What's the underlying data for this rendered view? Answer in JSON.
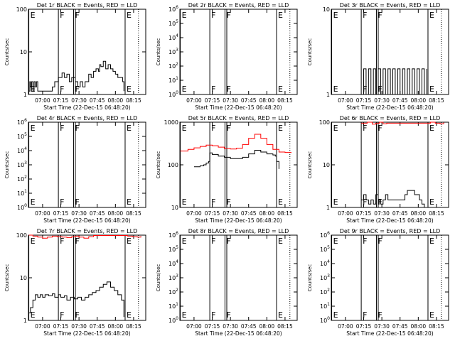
{
  "image": {
    "width": 640,
    "height": 480
  },
  "common": {
    "ylabel": "Counts/sec",
    "xlabel": "Start Time (22-Dec-15 06:48:20)",
    "x_start_time": "06:48:20",
    "x_end_time": "08:25:00",
    "x_ticks": [
      "07:00",
      "07:15",
      "07:30",
      "07:45",
      "08:00",
      "08:15"
    ],
    "event_line_color": "#000000",
    "lld_line_color": "#ff0000",
    "markers": [
      {
        "label": "E",
        "time": "06:48:40"
      },
      {
        "label": "F",
        "time": "07:13:00"
      },
      {
        "label": "F",
        "time": "07:25:30"
      },
      {
        "label": "E",
        "time": "08:08:00"
      }
    ],
    "band_time": "07:27:00"
  },
  "chart_data": [
    {
      "title": "Det 1r BLACK = Events, RED = LLD",
      "type": "line",
      "ylim": [
        1,
        100
      ],
      "y_ticks": [
        "1",
        "10",
        "100"
      ],
      "series": [
        {
          "name": "Events",
          "color": "#000000",
          "x": [
            "06:48:40",
            "06:49:30",
            "06:50:00",
            "06:51:00",
            "06:52:00",
            "06:53:00",
            "06:54:00",
            "06:55:00",
            "06:56:00",
            "07:00:00",
            "07:05:00",
            "07:08:00",
            "07:10:00",
            "07:13:00",
            "07:14:00",
            "07:16:00",
            "07:18:00",
            "07:20:00",
            "07:22:00",
            "07:24:00",
            "07:27:00",
            "07:29:00",
            "07:31:00",
            "07:33:00",
            "07:35:00",
            "07:38:00",
            "07:40:00",
            "07:42:00",
            "07:44:00",
            "07:46:00",
            "07:47:00",
            "07:48:00",
            "07:50:00",
            "07:52:00",
            "07:54:00",
            "07:56:00",
            "07:58:00",
            "08:00:00",
            "08:02:00",
            "08:04:00",
            "08:06:00",
            "08:07:00"
          ],
          "y": [
            1.2,
            2,
            1.5,
            2,
            1.2,
            2,
            1.5,
            2,
            1.2,
            1.2,
            1.2,
            1.5,
            2,
            2.5,
            2.5,
            3.2,
            2.5,
            3,
            2,
            2.5,
            2,
            1.5,
            2,
            1.5,
            2,
            3,
            2.5,
            3.5,
            4,
            3.5,
            5,
            4.5,
            6,
            4,
            5,
            4,
            3.5,
            3,
            2.5,
            2.5,
            2,
            1.2
          ]
        }
      ]
    },
    {
      "title": "Det 2r BLACK = Events, RED = LLD",
      "type": "line",
      "ylim": [
        1,
        1000000
      ],
      "y_ticks": [
        "10^0",
        "10^1",
        "10^2",
        "10^3",
        "10^4",
        "10^5",
        "10^6"
      ],
      "series": []
    },
    {
      "title": "Det 3r BLACK = Events, RED = LLD",
      "type": "line",
      "ylim": [
        1,
        10
      ],
      "y_ticks": [
        "1",
        "10"
      ],
      "series": [
        {
          "name": "Events",
          "color": "#000000",
          "x": [
            "07:13:00",
            "07:15:00",
            "07:17:00",
            "07:19:00",
            "07:21:00",
            "07:23:00",
            "07:25:00",
            "07:27:00",
            "07:29:00",
            "07:31:00",
            "07:33:00",
            "07:35:00",
            "07:37:00",
            "07:39:00",
            "07:41:00",
            "07:43:00",
            "07:45:00",
            "07:47:00",
            "07:49:00",
            "07:51:00",
            "07:53:00",
            "07:55:00",
            "07:57:00",
            "07:59:00",
            "08:01:00",
            "08:03:00",
            "08:05:00",
            "08:07:00"
          ],
          "y": [
            1,
            2,
            1,
            2,
            1,
            2,
            1,
            2,
            1,
            2,
            1,
            2,
            1,
            2,
            1,
            2,
            1,
            2,
            1,
            2,
            1,
            2,
            1,
            2,
            1,
            2,
            1,
            2
          ]
        }
      ]
    },
    {
      "title": "Det 4r BLACK = Events, RED = LLD",
      "type": "line",
      "ylim": [
        1,
        1000000
      ],
      "y_ticks": [
        "10^0",
        "10^1",
        "10^2",
        "10^3",
        "10^4",
        "10^5",
        "10^6"
      ],
      "series": []
    },
    {
      "title": "Det 5r BLACK = Events, RED = LLD",
      "type": "line",
      "ylim": [
        10,
        1000
      ],
      "y_ticks": [
        "10",
        "100",
        "1000"
      ],
      "series": [
        {
          "name": "LLD",
          "color": "#ff0000",
          "x": [
            "06:48:40",
            "06:55:00",
            "07:00:00",
            "07:05:00",
            "07:10:00",
            "07:15:00",
            "07:20:00",
            "07:25:00",
            "07:30:00",
            "07:35:00",
            "07:40:00",
            "07:45:00",
            "07:50:00",
            "07:55:00",
            "08:00:00",
            "08:05:00",
            "08:10:00",
            "08:15:00",
            "08:20:00"
          ],
          "y": [
            210,
            230,
            250,
            270,
            290,
            280,
            260,
            240,
            235,
            245,
            300,
            420,
            520,
            420,
            300,
            230,
            200,
            195,
            190
          ]
        },
        {
          "name": "Events",
          "color": "#000000",
          "x": [
            "07:00:00",
            "07:05:00",
            "07:08:00",
            "07:10:00",
            "07:12:00",
            "07:13:00",
            "07:15:00",
            "07:20:00",
            "07:25:00",
            "07:30:00",
            "07:35:00",
            "07:40:00",
            "07:45:00",
            "07:50:00",
            "07:55:00",
            "08:00:00",
            "08:05:00",
            "08:07:00",
            "08:08:00",
            "08:10:00"
          ],
          "y": [
            90,
            95,
            100,
            110,
            120,
            190,
            175,
            160,
            150,
            140,
            140,
            150,
            180,
            220,
            200,
            180,
            170,
            160,
            120,
            80
          ]
        }
      ]
    },
    {
      "title": "Det 6r BLACK = Events, RED = LLD",
      "type": "line",
      "ylim": [
        1,
        100
      ],
      "y_ticks": [
        "1",
        "10",
        "100"
      ],
      "series": [
        {
          "name": "LLD",
          "color": "#ff0000",
          "x": [
            "07:13:00",
            "07:18:00",
            "07:22:00",
            "07:25:00",
            "07:28:00",
            "07:31:00",
            "07:34:00",
            "08:10:00",
            "08:14:00",
            "08:18:00",
            "08:21:00"
          ],
          "y": [
            95,
            100,
            90,
            95,
            100,
            92,
            95,
            100,
            95,
            92,
            98
          ]
        },
        {
          "name": "Events",
          "color": "#000000",
          "x": [
            "07:13:00",
            "07:15:00",
            "07:17:00",
            "07:19:00",
            "07:21:00",
            "07:23:00",
            "07:25:00",
            "07:27:00",
            "07:29:00",
            "07:31:00",
            "07:33:00",
            "07:35:00",
            "07:37:00",
            "07:39:00",
            "07:41:00",
            "07:43:00",
            "07:45:00",
            "07:47:00",
            "07:49:00",
            "07:51:00",
            "07:53:00",
            "07:55:00",
            "07:57:00",
            "07:59:00",
            "08:01:00",
            "08:03:00",
            "08:05:00"
          ],
          "y": [
            1.5,
            2,
            1.5,
            1.2,
            1.5,
            1.2,
            2,
            1.5,
            1.2,
            1.5,
            2,
            1.5,
            1.5,
            1.5,
            1.5,
            1.5,
            1.5,
            1.5,
            2,
            2.5,
            2.5,
            2.5,
            2,
            2,
            1.5,
            1.2,
            1
          ]
        }
      ]
    },
    {
      "title": "Det 7r BLACK = Events, RED = LLD",
      "type": "line",
      "ylim": [
        1,
        100
      ],
      "y_ticks": [
        "1",
        "10",
        "100"
      ],
      "series": [
        {
          "name": "LLD",
          "color": "#ff0000",
          "x": [
            "06:48:40",
            "06:52:00",
            "06:56:00",
            "07:00:00",
            "07:04:00",
            "07:08:00",
            "07:12:00",
            "07:16:00",
            "07:20:00",
            "07:24:00",
            "07:27:00",
            "07:30:00",
            "07:34:00",
            "07:38:00",
            "07:42:00",
            "08:10:00",
            "08:14:00",
            "08:18:00",
            "08:21:00"
          ],
          "y": [
            100,
            95,
            90,
            85,
            90,
            95,
            92,
            90,
            88,
            92,
            95,
            90,
            85,
            92,
            98,
            95,
            92,
            90,
            95
          ]
        },
        {
          "name": "Events",
          "color": "#000000",
          "x": [
            "06:48:40",
            "06:50:00",
            "06:52:00",
            "06:54:00",
            "06:56:00",
            "06:58:00",
            "07:00:00",
            "07:02:00",
            "07:05:00",
            "07:08:00",
            "07:10:00",
            "07:13:00",
            "07:15:00",
            "07:18:00",
            "07:20:00",
            "07:23:00",
            "07:26:00",
            "07:29:00",
            "07:32:00",
            "07:35:00",
            "07:38:00",
            "07:41:00",
            "07:44:00",
            "07:47:00",
            "07:50:00",
            "07:53:00",
            "07:56:00",
            "07:59:00",
            "08:02:00",
            "08:05:00",
            "08:07:00"
          ],
          "y": [
            1.5,
            2,
            3,
            4,
            3.5,
            4,
            3.5,
            4,
            3.8,
            4.2,
            3.5,
            4,
            3.5,
            3.8,
            3,
            3.5,
            3.2,
            3.5,
            3,
            3.5,
            4,
            4.5,
            5,
            6,
            7,
            8,
            6,
            5,
            4,
            3,
            1.2
          ]
        }
      ]
    },
    {
      "title": "Det 8r BLACK = Events, RED = LLD",
      "type": "line",
      "ylim": [
        1,
        1000000
      ],
      "y_ticks": [
        "10^0",
        "10^1",
        "10^2",
        "10^3",
        "10^4",
        "10^5",
        "10^6"
      ],
      "series": []
    },
    {
      "title": "Det 9r BLACK = Events, RED = LLD",
      "type": "line",
      "ylim": [
        1,
        1000000
      ],
      "y_ticks": [
        "10^0",
        "10^1",
        "10^2",
        "10^3",
        "10^4",
        "10^5",
        "10^6"
      ],
      "series": []
    }
  ]
}
